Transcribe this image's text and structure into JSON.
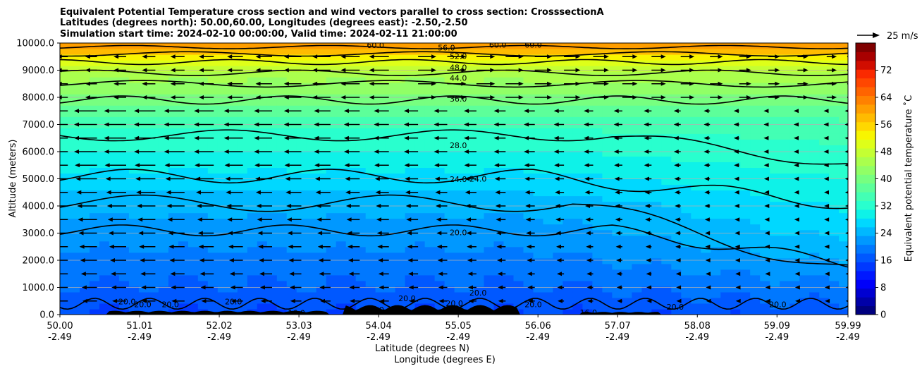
{
  "chart_data": {
    "type": "cross-section contour with wind vectors",
    "title_lines": [
      "Equivalent Potential Temperature cross section and wind vectors parallel to cross section: CrosssectionA",
      "Latitudes (degrees north): 50.00,60.00, Longitudes (degrees east): -2.50,-2.50",
      "Simulation start time: 2024-02-10 00:00:00, Valid time: 2024-02-11 21:00:00"
    ],
    "ylabel": "Altitude (meters)",
    "xlabel_lat": "Latitude (degrees N)",
    "xlabel_lon": "Longitude (degrees E)",
    "ylim": [
      0,
      10000
    ],
    "xlim": [
      50.0,
      59.99
    ],
    "yticks": [
      "0.0",
      "1000.0",
      "2000.0",
      "3000.0",
      "4000.0",
      "5000.0",
      "6000.0",
      "7000.0",
      "8000.0",
      "9000.0",
      "10000.0"
    ],
    "ytick_values": [
      0,
      1000,
      2000,
      3000,
      4000,
      5000,
      6000,
      7000,
      8000,
      9000,
      10000
    ],
    "xticks_lat": [
      "50.00",
      "51.01",
      "52.02",
      "53.03",
      "54.04",
      "55.05",
      "56.06",
      "57.07",
      "58.08",
      "59.09",
      "59.99"
    ],
    "xticks_lon": [
      "-2.49",
      "-2.49",
      "-2.49",
      "-2.49",
      "-2.49",
      "-2.49",
      "-2.49",
      "-2.49",
      "-2.49",
      "-2.49",
      "-2.49"
    ],
    "xtick_values": [
      50.0,
      51.01,
      52.02,
      53.03,
      54.04,
      55.05,
      56.06,
      57.07,
      58.08,
      59.09,
      59.99
    ],
    "colorbar": {
      "label": "Equivalent potential temperature $^\\circ$C",
      "label_display": "Equivalent potential temperature ˚C",
      "range": [
        0,
        80
      ],
      "ticks": [
        "0",
        "8",
        "16",
        "24",
        "32",
        "40",
        "48",
        "56",
        "64",
        "72"
      ],
      "tick_values": [
        0,
        8,
        16,
        24,
        32,
        40,
        48,
        56,
        64,
        72
      ],
      "colors": [
        "#00007f",
        "#0000a8",
        "#0000d1",
        "#0000fa",
        "#0018ff",
        "#0038ff",
        "#0058ff",
        "#0078ff",
        "#0098ff",
        "#00b8ff",
        "#00d8ff",
        "#0ef2e8",
        "#29ffce",
        "#43ffb4",
        "#5dff9a",
        "#77ff80",
        "#91ff66",
        "#aaff4d",
        "#c4ff33",
        "#deff19",
        "#f8f500",
        "#ffd800",
        "#ffbb00",
        "#ff9e00",
        "#ff8100",
        "#ff6400",
        "#ff4700",
        "#fa2a00",
        "#d10d00",
        "#a80000",
        "#7f0000"
      ]
    },
    "reference_vector": {
      "label": "25 m/s",
      "speed_ms": 25
    },
    "contour_labels": [
      {
        "text": "60.0",
        "lat": 54.0,
        "z": 9920
      },
      {
        "text": "56.0",
        "lat": 54.9,
        "z": 9830
      },
      {
        "text": "60.0",
        "lat": 55.55,
        "z": 9930
      },
      {
        "text": "60.0",
        "lat": 56.0,
        "z": 9930
      },
      {
        "text": "52.0",
        "lat": 55.05,
        "z": 9520
      },
      {
        "text": "48.0",
        "lat": 55.05,
        "z": 9100
      },
      {
        "text": "44.0",
        "lat": 55.05,
        "z": 8710
      },
      {
        "text": "36.0",
        "lat": 55.05,
        "z": 7950
      },
      {
        "text": "28.0",
        "lat": 55.05,
        "z": 6230
      },
      {
        "text": "24.0",
        "lat": 55.05,
        "z": 4990
      },
      {
        "text": "24.0",
        "lat": 55.3,
        "z": 5000
      },
      {
        "text": "20.0",
        "lat": 55.05,
        "z": 3030
      },
      {
        "text": "20.0",
        "lat": 55.3,
        "z": 810
      },
      {
        "text": "20.0",
        "lat": 52.2,
        "z": 480
      },
      {
        "text": "20.0",
        "lat": 50.85,
        "z": 480
      },
      {
        "text": "20.0",
        "lat": 51.05,
        "z": 380
      },
      {
        "text": "20.0",
        "lat": 51.4,
        "z": 380
      },
      {
        "text": "20.0",
        "lat": 54.4,
        "z": 600
      },
      {
        "text": "20.0",
        "lat": 55.0,
        "z": 420
      },
      {
        "text": "20.0",
        "lat": 56.0,
        "z": 380
      },
      {
        "text": "20.0",
        "lat": 57.8,
        "z": 280
      },
      {
        "text": "16.0",
        "lat": 53.0,
        "z": 60
      },
      {
        "text": "20.0",
        "lat": 54.0,
        "z": 180
      },
      {
        "text": "16.0",
        "lat": 56.7,
        "z": 80
      },
      {
        "text": "20.0",
        "lat": 59.1,
        "z": 380
      }
    ],
    "contour_levels": [
      16,
      20,
      24,
      28,
      32,
      36,
      40,
      44,
      48,
      52,
      56,
      60
    ],
    "vector_rows_z": [
      500,
      1000,
      1500,
      2000,
      2500,
      3000,
      3500,
      4000,
      4500,
      5000,
      5500,
      6000,
      6500,
      7000,
      7500,
      8000,
      8500,
      9000,
      9500
    ],
    "vector_cols_lat": [
      50.1,
      50.47,
      50.84,
      51.21,
      51.58,
      51.95,
      52.32,
      52.69,
      53.06,
      53.43,
      53.8,
      54.17,
      54.54,
      54.91,
      55.28,
      55.65,
      56.02,
      56.39,
      56.76,
      57.13,
      57.5,
      57.87,
      58.24,
      58.61,
      58.98,
      59.35,
      59.72,
      59.98
    ]
  }
}
